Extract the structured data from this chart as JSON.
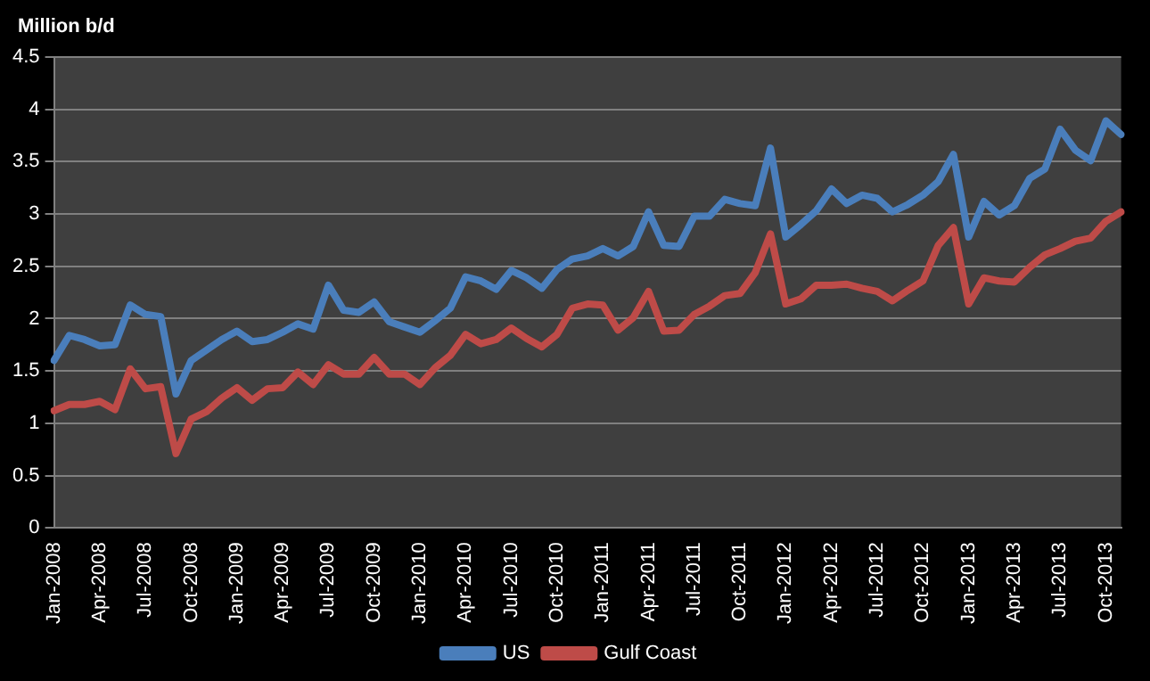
{
  "chart_data": {
    "type": "line",
    "ylabel": "Million b/d",
    "categories": [
      "Jan-2008",
      null,
      null,
      "Apr-2008",
      null,
      null,
      "Jul-2008",
      null,
      null,
      "Oct-2008",
      null,
      null,
      "Jan-2009",
      null,
      null,
      "Apr-2009",
      null,
      null,
      "Jul-2009",
      null,
      null,
      "Oct-2009",
      null,
      null,
      "Jan-2010",
      null,
      null,
      "Apr-2010",
      null,
      null,
      "Jul-2010",
      null,
      null,
      "Oct-2010",
      null,
      null,
      "Jan-2011",
      null,
      null,
      "Apr-2011",
      null,
      null,
      "Jul-2011",
      null,
      null,
      "Oct-2011",
      null,
      null,
      "Jan-2012",
      null,
      null,
      "Apr-2012",
      null,
      null,
      "Jul-2012",
      null,
      null,
      "Oct-2012",
      null,
      null,
      "Jan-2013",
      null,
      null,
      "Apr-2013",
      null,
      null,
      "Jul-2013",
      null,
      null,
      "Oct-2013",
      null
    ],
    "series": [
      {
        "name": "US",
        "color": "#4a7ebb",
        "values": [
          1.6,
          1.84,
          1.8,
          1.74,
          1.75,
          2.13,
          2.04,
          2.02,
          1.28,
          1.6,
          1.7,
          1.8,
          1.88,
          1.78,
          1.8,
          1.87,
          1.95,
          1.9,
          2.32,
          2.08,
          2.06,
          2.16,
          1.97,
          1.92,
          1.87,
          1.98,
          2.1,
          2.4,
          2.36,
          2.28,
          2.46,
          2.39,
          2.29,
          2.47,
          2.57,
          2.6,
          2.67,
          2.6,
          2.69,
          3.02,
          2.7,
          2.69,
          2.98,
          2.98,
          3.14,
          3.1,
          3.08,
          3.63,
          2.78,
          2.9,
          3.03,
          3.24,
          3.1,
          3.18,
          3.15,
          3.02,
          3.09,
          3.18,
          3.31,
          3.57,
          2.78,
          3.12,
          2.99,
          3.08,
          3.34,
          3.43,
          3.81,
          3.61,
          3.51,
          3.89,
          3.76
        ]
      },
      {
        "name": "Gulf Coast",
        "color": "#be4b48",
        "values": [
          1.12,
          1.18,
          1.18,
          1.21,
          1.13,
          1.52,
          1.33,
          1.35,
          0.71,
          1.04,
          1.11,
          1.24,
          1.34,
          1.22,
          1.33,
          1.34,
          1.49,
          1.37,
          1.56,
          1.47,
          1.47,
          1.63,
          1.47,
          1.47,
          1.37,
          1.53,
          1.65,
          1.85,
          1.76,
          1.8,
          1.91,
          1.81,
          1.73,
          1.85,
          2.1,
          2.14,
          2.13,
          1.89,
          2.01,
          2.26,
          1.88,
          1.89,
          2.04,
          2.12,
          2.22,
          2.24,
          2.44,
          2.81,
          2.14,
          2.19,
          2.32,
          2.32,
          2.33,
          2.29,
          2.26,
          2.17,
          2.27,
          2.36,
          2.7,
          2.87,
          2.14,
          2.39,
          2.36,
          2.35,
          2.49,
          2.61,
          2.67,
          2.74,
          2.77,
          2.93,
          3.02
        ]
      }
    ],
    "ylim": [
      0,
      4.5
    ],
    "yticks": [
      0,
      0.5,
      1,
      1.5,
      2,
      2.5,
      3,
      3.5,
      4,
      4.5
    ],
    "grid": "y",
    "legend": "bottom",
    "marker": "none",
    "line_style": "solid"
  }
}
